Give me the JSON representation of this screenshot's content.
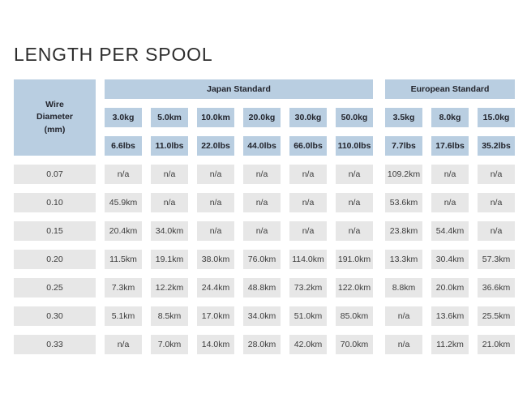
{
  "title": "LENGTH PER SPOOL",
  "colors": {
    "header_blue": "#b9cee1",
    "cell_gray": "#e7e7e7",
    "title_text": "#2d2d2d",
    "header_text": "#22242c",
    "cell_text": "#3c3c3c",
    "background": "#ffffff"
  },
  "chart_data": {
    "type": "table",
    "title": "LENGTH PER SPOOL",
    "corner_label": "Wire\nDiameter\n(mm)",
    "column_groups": [
      {
        "label": "Japan Standard",
        "kg_labels": [
          "3.0kg",
          "5.0km",
          "10.0km",
          "20.0kg",
          "30.0kg",
          "50.0kg"
        ],
        "lbs_labels": [
          "6.6lbs",
          "11.0lbs",
          "22.0lbs",
          "44.0lbs",
          "66.0lbs",
          "110.0lbs"
        ]
      },
      {
        "label": "European Standard",
        "kg_labels": [
          "3.5kg",
          "8.0kg",
          "15.0kg"
        ],
        "lbs_labels": [
          "7.7lbs",
          "17.6lbs",
          "35.2lbs"
        ]
      }
    ],
    "rows": [
      {
        "diameter_mm": "0.07",
        "values": [
          "n/a",
          "n/a",
          "n/a",
          "n/a",
          "n/a",
          "n/a",
          "109.2km",
          "n/a",
          "n/a"
        ]
      },
      {
        "diameter_mm": "0.10",
        "values": [
          "45.9km",
          "n/a",
          "n/a",
          "n/a",
          "n/a",
          "n/a",
          "53.6km",
          "n/a",
          "n/a"
        ]
      },
      {
        "diameter_mm": "0.15",
        "values": [
          "20.4km",
          "34.0km",
          "n/a",
          "n/a",
          "n/a",
          "n/a",
          "23.8km",
          "54.4km",
          "n/a"
        ]
      },
      {
        "diameter_mm": "0.20",
        "values": [
          "11.5km",
          "19.1km",
          "38.0km",
          "76.0km",
          "114.0km",
          "191.0km",
          "13.3km",
          "30.4km",
          "57.3km"
        ]
      },
      {
        "diameter_mm": "0.25",
        "values": [
          "7.3km",
          "12.2km",
          "24.4km",
          "48.8km",
          "73.2km",
          "122.0km",
          "8.8km",
          "20.0km",
          "36.6km"
        ]
      },
      {
        "diameter_mm": "0.30",
        "values": [
          "5.1km",
          "8.5km",
          "17.0km",
          "34.0km",
          "51.0km",
          "85.0km",
          "n/a",
          "13.6km",
          "25.5km"
        ]
      },
      {
        "diameter_mm": "0.33",
        "values": [
          "n/a",
          "7.0km",
          "14.0km",
          "28.0km",
          "42.0km",
          "70.0km",
          "n/a",
          "11.2km",
          "21.0km"
        ]
      }
    ]
  }
}
